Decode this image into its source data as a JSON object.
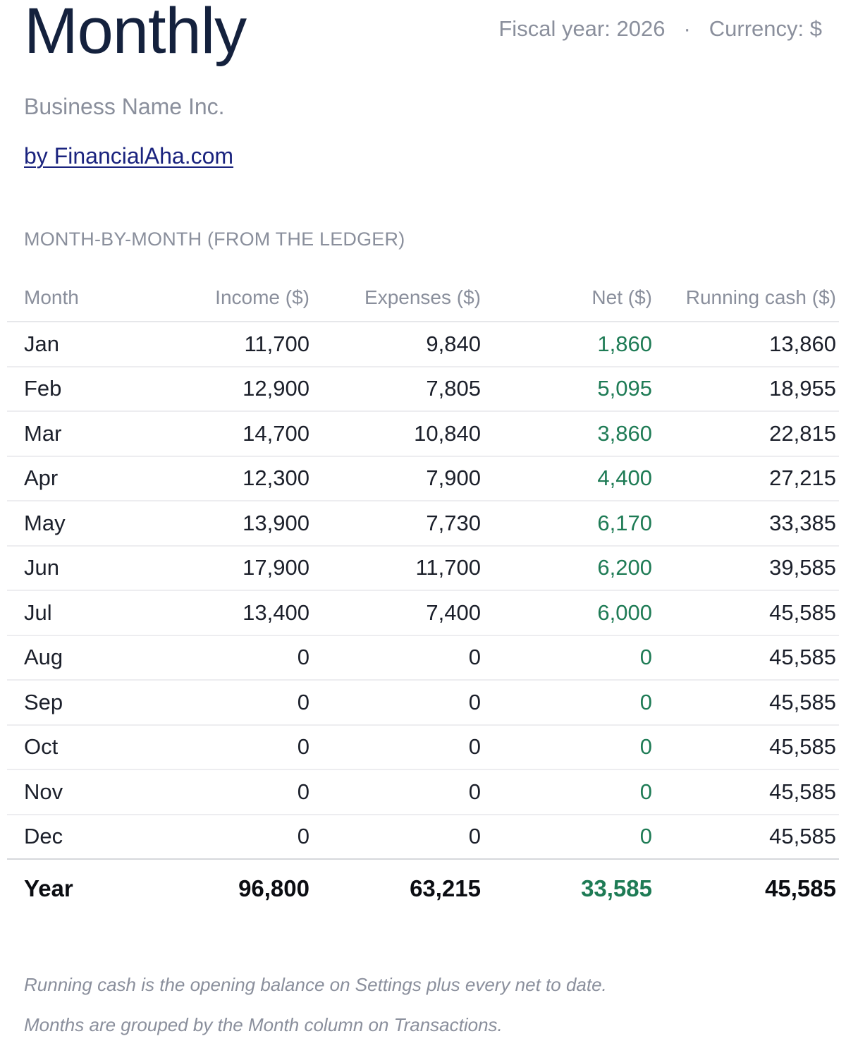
{
  "header": {
    "title": "Monthly",
    "fiscal_year": "Fiscal year: 2026",
    "separator": "·",
    "currency": "Currency: $",
    "business_name": "Business Name Inc.",
    "byline_link": "by FinancialAha.com"
  },
  "section": {
    "heading": "MONTH-BY-MONTH (FROM THE LEDGER)"
  },
  "table": {
    "columns": [
      "Month",
      "Income ($)",
      "Expenses ($)",
      "Net ($)",
      "Running cash ($)"
    ],
    "rows": [
      [
        "Jan",
        "11,700",
        "9,840",
        "1,860",
        "13,860"
      ],
      [
        "Feb",
        "12,900",
        "7,805",
        "5,095",
        "18,955"
      ],
      [
        "Mar",
        "14,700",
        "10,840",
        "3,860",
        "22,815"
      ],
      [
        "Apr",
        "12,300",
        "7,900",
        "4,400",
        "27,215"
      ],
      [
        "May",
        "13,900",
        "7,730",
        "6,170",
        "33,385"
      ],
      [
        "Jun",
        "17,900",
        "11,700",
        "6,200",
        "39,585"
      ],
      [
        "Jul",
        "13,400",
        "7,400",
        "6,000",
        "45,585"
      ],
      [
        "Aug",
        "0",
        "0",
        "0",
        "45,585"
      ],
      [
        "Sep",
        "0",
        "0",
        "0",
        "45,585"
      ],
      [
        "Oct",
        "0",
        "0",
        "0",
        "45,585"
      ],
      [
        "Nov",
        "0",
        "0",
        "0",
        "45,585"
      ],
      [
        "Dec",
        "0",
        "0",
        "0",
        "45,585"
      ]
    ],
    "total": [
      "Year",
      "96,800",
      "63,215",
      "33,585",
      "45,585"
    ]
  },
  "footnotes": [
    "Running cash is the opening balance on Settings plus every net to date.",
    "Months are grouped by the Month column on Transactions."
  ],
  "colors": {
    "title": "#14213d",
    "muted": "#8a8f9c",
    "link": "#1a237e",
    "net_positive": "#1e7b55"
  }
}
